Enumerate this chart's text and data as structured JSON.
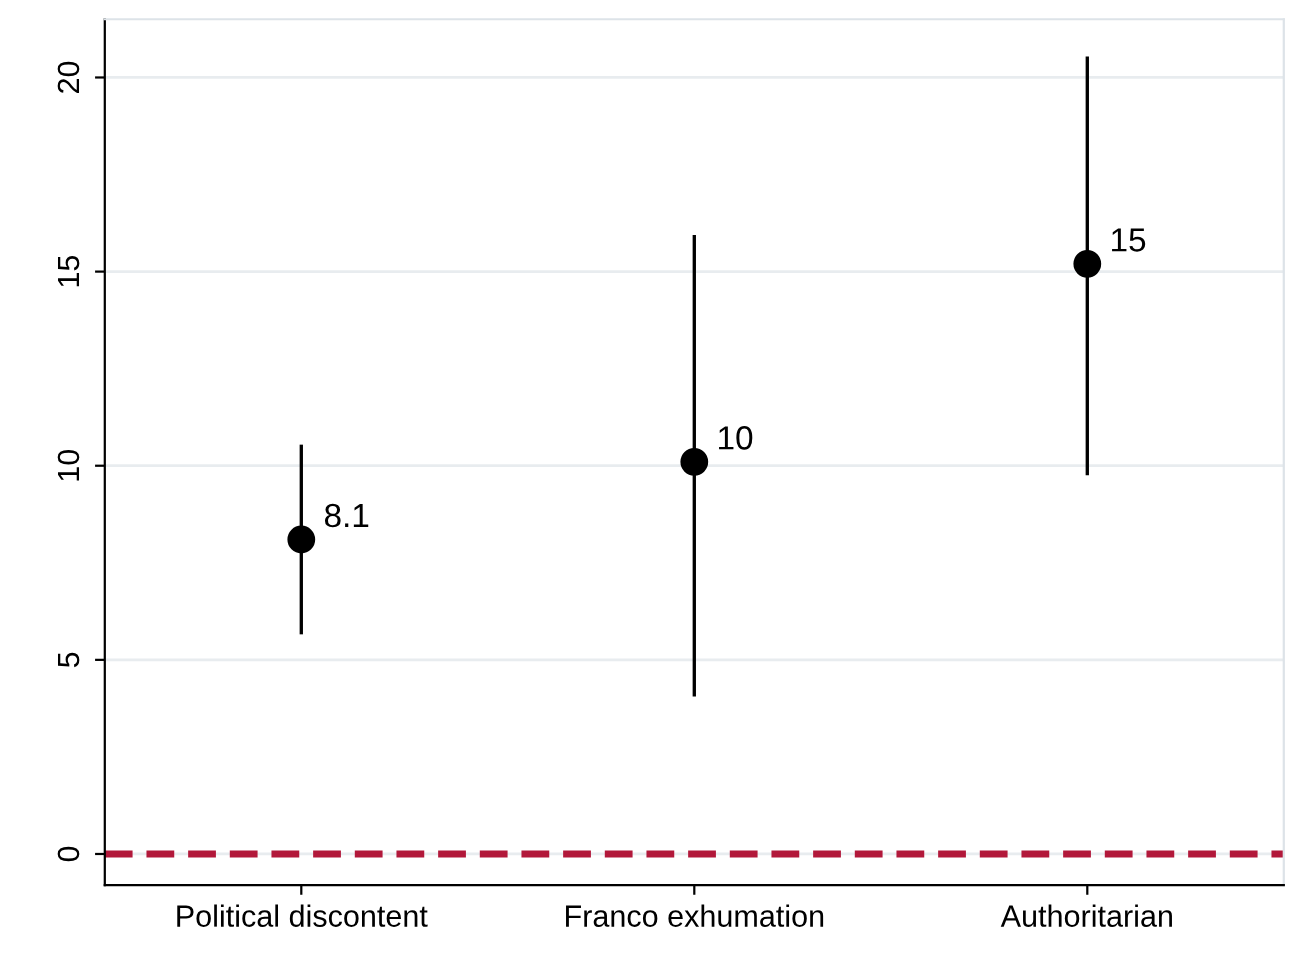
{
  "chart_data": {
    "type": "scatter",
    "categories": [
      "Political discontent",
      "Franco exhumation",
      "Authoritarian"
    ],
    "values": [
      8.1,
      10.1,
      15.2
    ],
    "errors": [
      [
        5.7,
        10.5
      ],
      [
        4.1,
        15.9
      ],
      [
        9.8,
        20.5
      ]
    ],
    "value_labels": [
      "8.1",
      "10",
      "15"
    ],
    "color": "#000000",
    "marker": "circle",
    "ylim": [
      -0.8,
      21.5
    ],
    "yticks": [
      0,
      5,
      10,
      15,
      20
    ],
    "grid": "y",
    "ref_lines": [
      {
        "axis": "y",
        "value": 0,
        "color": "#b2183a",
        "line_style": "dashed"
      }
    ]
  }
}
